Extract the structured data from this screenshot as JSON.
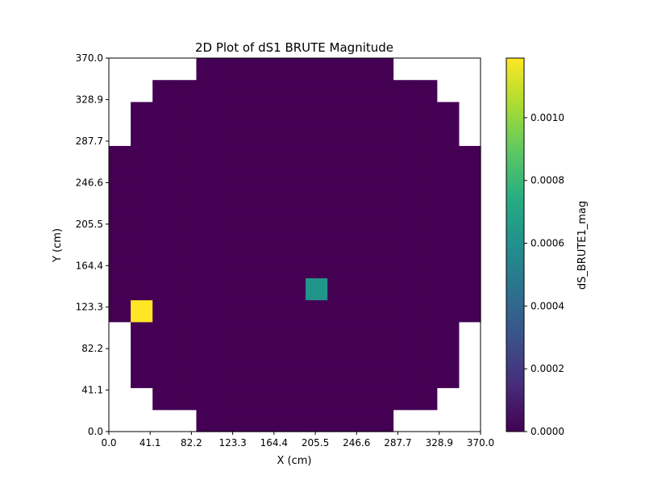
{
  "chart_data": {
    "type": "heatmap",
    "title": "2D Plot of dS1 BRUTE Magnitude",
    "xlabel": "X (cm)",
    "ylabel": "Y (cm)",
    "xlim": [
      0.0,
      370.0
    ],
    "ylim": [
      0.0,
      370.0
    ],
    "x_ticks": [
      "0.0",
      "41.1",
      "82.2",
      "123.3",
      "164.4",
      "205.5",
      "246.6",
      "287.7",
      "328.9",
      "370.0"
    ],
    "y_ticks": [
      "0.0",
      "41.1",
      "82.2",
      "123.3",
      "164.4",
      "205.5",
      "246.6",
      "287.7",
      "328.9",
      "370.0"
    ],
    "grid": false,
    "colormap": "viridis",
    "colorbar": {
      "label": "dS_BRUTE1_mag",
      "range": [
        0.0,
        0.00119
      ],
      "ticks": [
        "0.0000",
        "0.0002",
        "0.0004",
        "0.0006",
        "0.0008",
        "0.0010"
      ]
    },
    "grid_size": 17,
    "cell_size_cm": 21.765,
    "row_extents": [
      [
        4,
        12
      ],
      [
        2,
        14
      ],
      [
        1,
        15
      ],
      [
        1,
        15
      ],
      [
        1,
        15
      ],
      [
        0,
        16
      ],
      [
        0,
        16
      ],
      [
        0,
        16
      ],
      [
        0,
        16
      ],
      [
        0,
        16
      ],
      [
        0,
        16
      ],
      [
        0,
        16
      ],
      [
        0,
        16
      ],
      [
        1,
        15
      ],
      [
        1,
        15
      ],
      [
        2,
        14
      ],
      [
        4,
        12
      ]
    ],
    "background_value": 0.0,
    "hotspots": [
      {
        "col": 1,
        "row": 5,
        "x": 30.5,
        "y": 113.5,
        "value": 0.00119
      },
      {
        "col": 9,
        "row": 6,
        "x": 189.0,
        "y": 135.0,
        "value": 0.00062
      }
    ]
  }
}
